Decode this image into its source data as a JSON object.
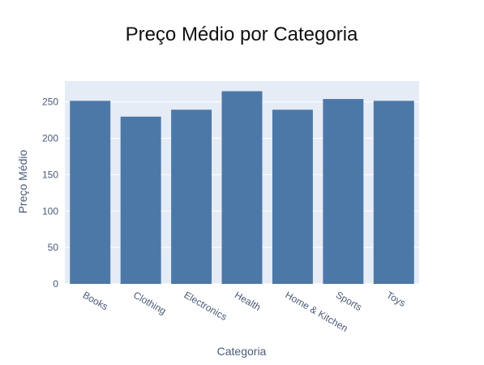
{
  "chart_data": {
    "type": "bar",
    "title": "Preço Médio por Categoria",
    "xlabel": "Categoria",
    "ylabel": "Preço Médio",
    "categories": [
      "Books",
      "Clothing",
      "Electronics",
      "Health",
      "Home & Kitchen",
      "Sports",
      "Toys"
    ],
    "values": [
      251.5,
      229.8,
      239.3,
      264.7,
      239.3,
      254.0,
      251.5
    ],
    "ylim": [
      0,
      278.6
    ],
    "yticks": [
      0,
      50,
      100,
      150,
      200,
      250
    ],
    "grid": true,
    "legend": "none",
    "colors": {
      "bar": "#4c78a8",
      "plot_background": "#e5ecf6",
      "grid": "#ffffff",
      "text": "#4a5a78",
      "title": "#111111"
    }
  }
}
